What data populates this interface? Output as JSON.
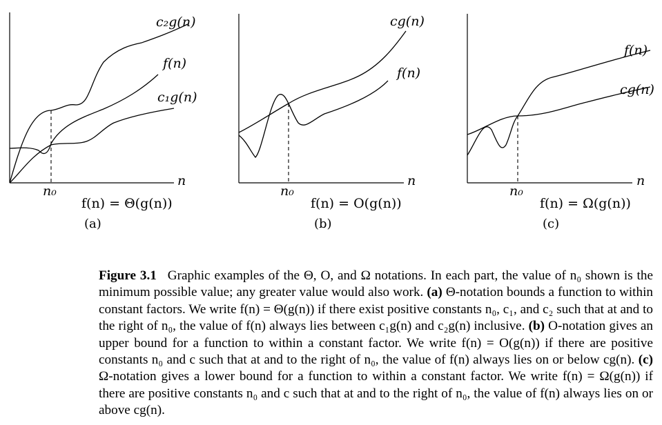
{
  "panels": [
    {
      "id": "a",
      "curve_labels": [
        "c₂g(n)",
        "f(n)",
        "c₁g(n)"
      ],
      "x_axis_label": "n",
      "threshold_label": "n₀",
      "relation": "f(n) = Θ(g(n))",
      "sublabel": "(a)"
    },
    {
      "id": "b",
      "curve_labels": [
        "cg(n)",
        "f(n)"
      ],
      "x_axis_label": "n",
      "threshold_label": "n₀",
      "relation": "f(n) = O(g(n))",
      "sublabel": "(b)"
    },
    {
      "id": "c",
      "curve_labels": [
        "f(n)",
        "cg(n)"
      ],
      "x_axis_label": "n",
      "threshold_label": "n₀",
      "relation": "f(n) = Ω(g(n))",
      "sublabel": "(c)"
    }
  ],
  "caption": {
    "figure_label": "Figure 3.1",
    "lead": "Graphic examples of the Θ, O, and Ω notations. In each part, the value of n₀ shown is the minimum possible value; any greater value would also work.",
    "part_a_label": "(a)",
    "part_a": "Θ-notation bounds a function to within constant factors. We write f(n) = Θ(g(n)) if there exist positive constants n₀, c₁, and c₂ such that at and to the right of n₀, the value of f(n) always lies between c₁g(n) and c₂g(n) inclusive.",
    "part_b_label": "(b)",
    "part_b": "O-notation gives an upper bound for a function to within a constant factor. We write f(n) = O(g(n)) if there are positive constants n₀ and c such that at and to the right of n₀, the value of f(n) always lies on or below cg(n).",
    "part_c_label": "(c)",
    "part_c": "Ω-notation gives a lower bound for a function to within a constant factor. We write f(n) = Ω(g(n)) if there are positive constants n₀ and c such that at and to the right of n₀, the value of f(n) always lies on or above cg(n)."
  }
}
